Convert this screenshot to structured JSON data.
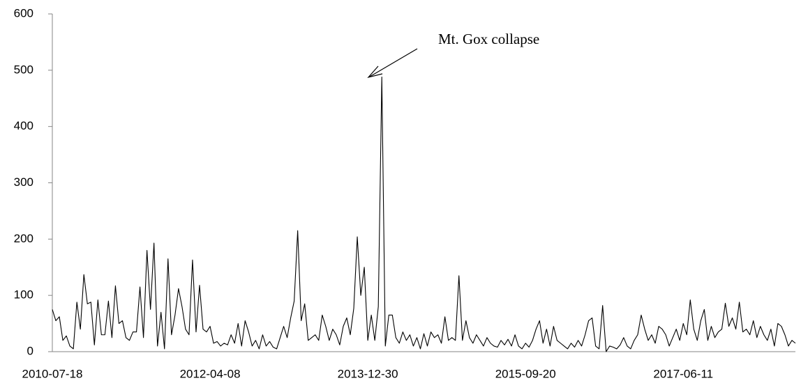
{
  "chart_data": {
    "type": "line",
    "annotation": "Mt. Gox collapse",
    "color": "#000000",
    "ylim": [
      0,
      600
    ],
    "yticks": [
      0,
      100,
      200,
      300,
      400,
      500,
      600
    ],
    "grid": false,
    "categories": [
      "2010-07-18",
      null,
      null,
      null,
      null,
      null,
      null,
      null,
      null,
      null,
      null,
      null,
      null,
      null,
      null,
      null,
      null,
      null,
      null,
      null,
      null,
      null,
      null,
      null,
      null,
      null,
      null,
      null,
      null,
      null,
      null,
      null,
      null,
      null,
      null,
      null,
      null,
      null,
      null,
      null,
      null,
      null,
      null,
      null,
      null,
      "2012-04-08",
      null,
      null,
      null,
      null,
      null,
      null,
      null,
      null,
      null,
      null,
      null,
      null,
      null,
      null,
      null,
      null,
      null,
      null,
      null,
      null,
      null,
      null,
      null,
      null,
      null,
      null,
      null,
      null,
      null,
      null,
      null,
      null,
      null,
      null,
      null,
      null,
      null,
      null,
      null,
      null,
      null,
      null,
      null,
      null,
      "2013-12-30",
      null,
      null,
      null,
      null,
      null,
      null,
      null,
      null,
      null,
      null,
      null,
      null,
      null,
      null,
      null,
      null,
      null,
      null,
      null,
      null,
      null,
      null,
      null,
      null,
      null,
      null,
      null,
      null,
      null,
      null,
      null,
      null,
      null,
      null,
      null,
      null,
      null,
      null,
      null,
      null,
      null,
      null,
      null,
      null,
      "2015-09-20",
      null,
      null,
      null,
      null,
      null,
      null,
      null,
      null,
      null,
      null,
      null,
      null,
      null,
      null,
      null,
      null,
      null,
      null,
      null,
      null,
      null,
      null,
      null,
      null,
      null,
      null,
      null,
      null,
      null,
      null,
      null,
      null,
      null,
      null,
      null,
      null,
      null,
      null,
      null,
      null,
      null,
      null,
      null,
      null,
      "2017-06-11",
      null,
      null,
      null,
      null,
      null,
      null,
      null,
      null,
      null,
      null,
      null,
      null,
      null,
      null,
      null,
      null,
      null,
      null,
      null,
      null,
      null,
      null,
      null,
      null,
      null,
      null,
      null,
      null,
      null,
      null,
      null,
      null
    ],
    "values": [
      75,
      55,
      62,
      20,
      28,
      10,
      5,
      88,
      40,
      137,
      85,
      88,
      12,
      92,
      30,
      30,
      90,
      25,
      117,
      50,
      55,
      25,
      20,
      35,
      35,
      115,
      25,
      180,
      75,
      193,
      10,
      70,
      5,
      165,
      30,
      65,
      112,
      80,
      40,
      30,
      163,
      35,
      118,
      40,
      35,
      45,
      15,
      18,
      10,
      15,
      12,
      30,
      15,
      50,
      10,
      55,
      35,
      10,
      20,
      5,
      30,
      10,
      18,
      8,
      5,
      25,
      45,
      25,
      60,
      90,
      215,
      55,
      85,
      20,
      25,
      30,
      20,
      65,
      45,
      20,
      40,
      30,
      12,
      45,
      60,
      30,
      77,
      204,
      100,
      150,
      20,
      65,
      20,
      80,
      488,
      10,
      65,
      65,
      25,
      15,
      35,
      20,
      30,
      10,
      25,
      5,
      32,
      10,
      35,
      25,
      30,
      15,
      62,
      20,
      25,
      20,
      135,
      20,
      55,
      25,
      15,
      30,
      20,
      10,
      25,
      15,
      10,
      8,
      20,
      12,
      22,
      10,
      30,
      10,
      5,
      15,
      8,
      20,
      40,
      55,
      15,
      40,
      10,
      45,
      20,
      15,
      10,
      5,
      15,
      8,
      20,
      10,
      30,
      55,
      60,
      10,
      5,
      82,
      0,
      10,
      8,
      5,
      12,
      25,
      10,
      5,
      20,
      30,
      65,
      40,
      20,
      30,
      15,
      45,
      40,
      30,
      10,
      25,
      40,
      20,
      50,
      30,
      92,
      40,
      20,
      55,
      75,
      20,
      45,
      25,
      35,
      40,
      86,
      45,
      60,
      40,
      88,
      35,
      40,
      30,
      55,
      25,
      45,
      30,
      20,
      40,
      10,
      50,
      45,
      30,
      10,
      20,
      15
    ]
  }
}
